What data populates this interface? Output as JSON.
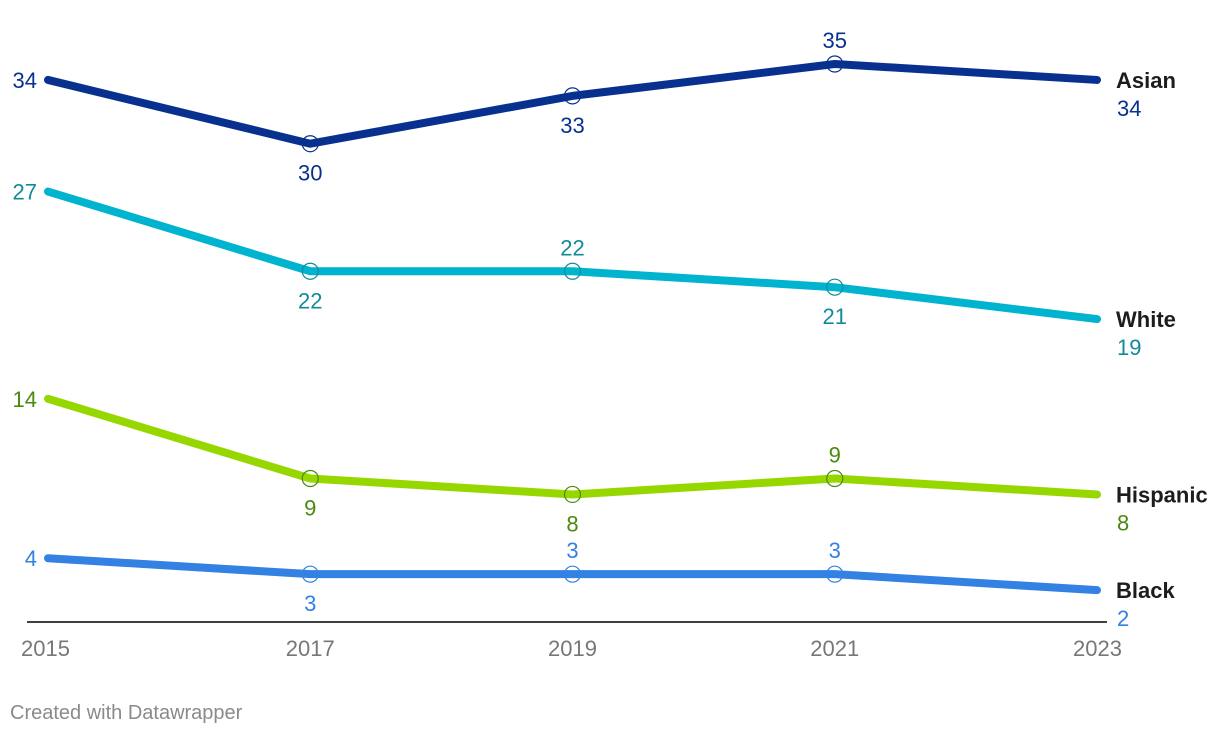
{
  "chart_data": {
    "type": "line",
    "x": [
      2015,
      2017,
      2019,
      2021,
      2023
    ],
    "ylim": [
      0,
      37
    ],
    "grid": false,
    "legend": "inline-right",
    "series": [
      {
        "name": "Asian",
        "color": "#08318f",
        "label_color": "#08318f",
        "values": [
          34,
          30,
          33,
          35,
          34
        ]
      },
      {
        "name": "White",
        "color": "#00b4cf",
        "label_color": "#138a99",
        "values": [
          27,
          22,
          22,
          21,
          19
        ]
      },
      {
        "name": "Hispanic",
        "color": "#97d700",
        "label_color": "#4a8a0e",
        "values": [
          14,
          9,
          8,
          9,
          8
        ]
      },
      {
        "name": "Black",
        "color": "#3281e3",
        "label_color": "#3281e3",
        "values": [
          4,
          3,
          3,
          3,
          2
        ]
      }
    ]
  },
  "footer": {
    "credit": "Created with Datawrapper"
  }
}
